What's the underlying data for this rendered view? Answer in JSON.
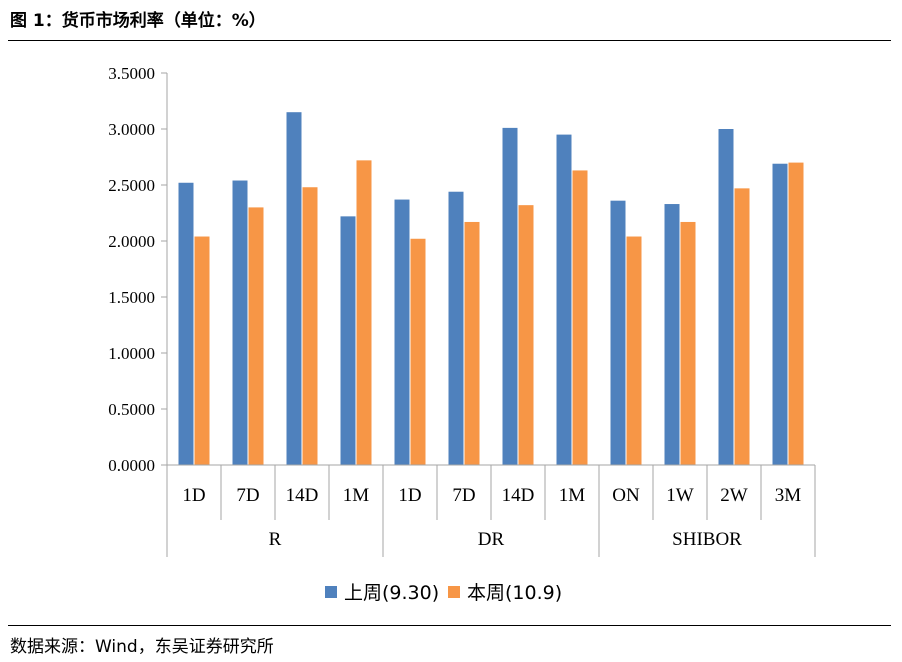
{
  "header": {
    "title": "图 1：货币市场利率（单位：%）"
  },
  "footer": {
    "source": "数据来源：Wind，东吴证券研究所"
  },
  "colors": {
    "series0": "#4f81bd",
    "series1": "#f79646",
    "axis": "#a6a6a6"
  },
  "chart_data": {
    "type": "bar",
    "title": "货币市场利率（单位：%）",
    "ylabel": "%",
    "ylim": [
      0,
      3.5
    ],
    "yticks": [
      "0.0000",
      "0.5000",
      "1.0000",
      "1.5000",
      "2.0000",
      "2.5000",
      "3.0000",
      "3.5000"
    ],
    "groups": [
      {
        "name": "R",
        "categories": [
          "1D",
          "7D",
          "14D",
          "1M"
        ]
      },
      {
        "name": "DR",
        "categories": [
          "1D",
          "7D",
          "14D",
          "1M"
        ]
      },
      {
        "name": "SHIBOR",
        "categories": [
          "ON",
          "1W",
          "2W",
          "3M"
        ]
      }
    ],
    "series": [
      {
        "name": "上周(9.30)",
        "values": [
          2.52,
          2.54,
          3.15,
          2.22,
          2.37,
          2.44,
          3.01,
          2.95,
          2.36,
          2.33,
          3.0,
          2.69
        ]
      },
      {
        "name": "本周(10.9)",
        "values": [
          2.04,
          2.3,
          2.48,
          2.72,
          2.02,
          2.17,
          2.32,
          2.63,
          2.04,
          2.17,
          2.47,
          2.7
        ]
      }
    ],
    "legend": "bottom"
  }
}
